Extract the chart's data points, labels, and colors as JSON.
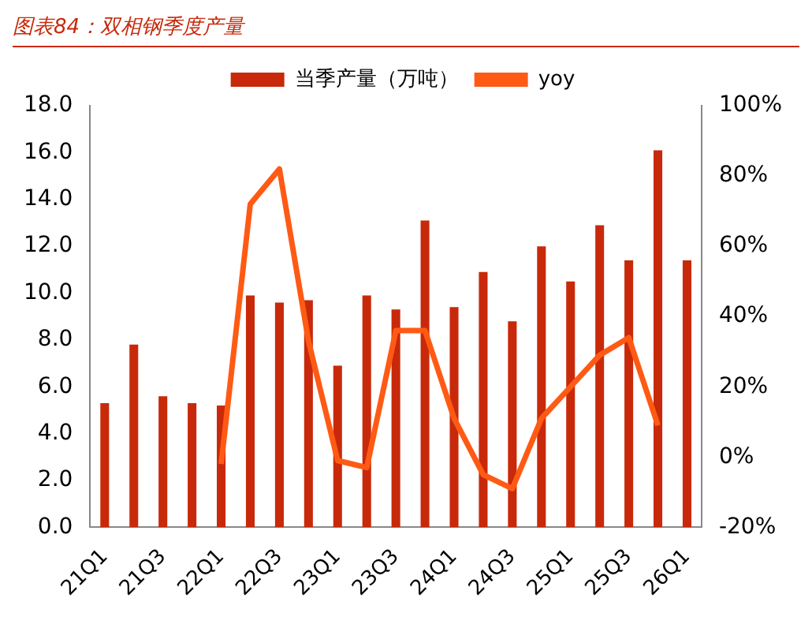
{
  "chart_data": {
    "type": "bar",
    "title": "图表84：双相钢季度产量",
    "categories": [
      "21Q1",
      null,
      "21Q3",
      null,
      "22Q1",
      null,
      "22Q3",
      null,
      "23Q1",
      null,
      "23Q3",
      null,
      "24Q1",
      null,
      "24Q3",
      null,
      "25Q1",
      null,
      "25Q3",
      null,
      "26Q1"
    ],
    "series": [
      {
        "name": "当季产量（万吨）",
        "color": "#c8290a",
        "values": [
          5.3,
          7.8,
          5.6,
          5.3,
          5.2,
          9.9,
          9.6,
          9.7,
          6.9,
          9.9,
          9.3,
          13.1,
          9.4,
          10.9,
          8.8,
          12.0,
          10.5,
          12.9,
          11.4,
          16.1,
          11.4
        ]
      },
      {
        "name": "yoy",
        "type": "line",
        "axis": "y2",
        "color": "#ff5a14",
        "values": [
          null,
          null,
          null,
          null,
          -2,
          72,
          82,
          33,
          -1,
          -3,
          36,
          36,
          11,
          -5,
          -9,
          11,
          20,
          29,
          34,
          9,
          null
        ]
      }
    ],
    "ylim": [
      0,
      18
    ],
    "yticks": [
      {
        "value": 0,
        "label": "0.0"
      },
      {
        "value": 2,
        "label": "2.0"
      },
      {
        "value": 4,
        "label": "4.0"
      },
      {
        "value": 6,
        "label": "6.0"
      },
      {
        "value": 8,
        "label": "8.0"
      },
      {
        "value": 10,
        "label": "10.0"
      },
      {
        "value": 12,
        "label": "12.0"
      },
      {
        "value": 14,
        "label": "14.0"
      },
      {
        "value": 16,
        "label": "16.0"
      },
      {
        "value": 18,
        "label": "18.0"
      }
    ],
    "y2lim": [
      -20,
      100
    ],
    "y2ticks": [
      {
        "value": -20,
        "label": "-20%"
      },
      {
        "value": 0,
        "label": "0%"
      },
      {
        "value": 20,
        "label": "20%"
      },
      {
        "value": 40,
        "label": "40%"
      },
      {
        "value": 60,
        "label": "60%"
      },
      {
        "value": 80,
        "label": "80%"
      },
      {
        "value": 100,
        "label": "100%"
      }
    ],
    "legend": "top",
    "grid": false,
    "marker": "none",
    "line_style": "solid"
  }
}
